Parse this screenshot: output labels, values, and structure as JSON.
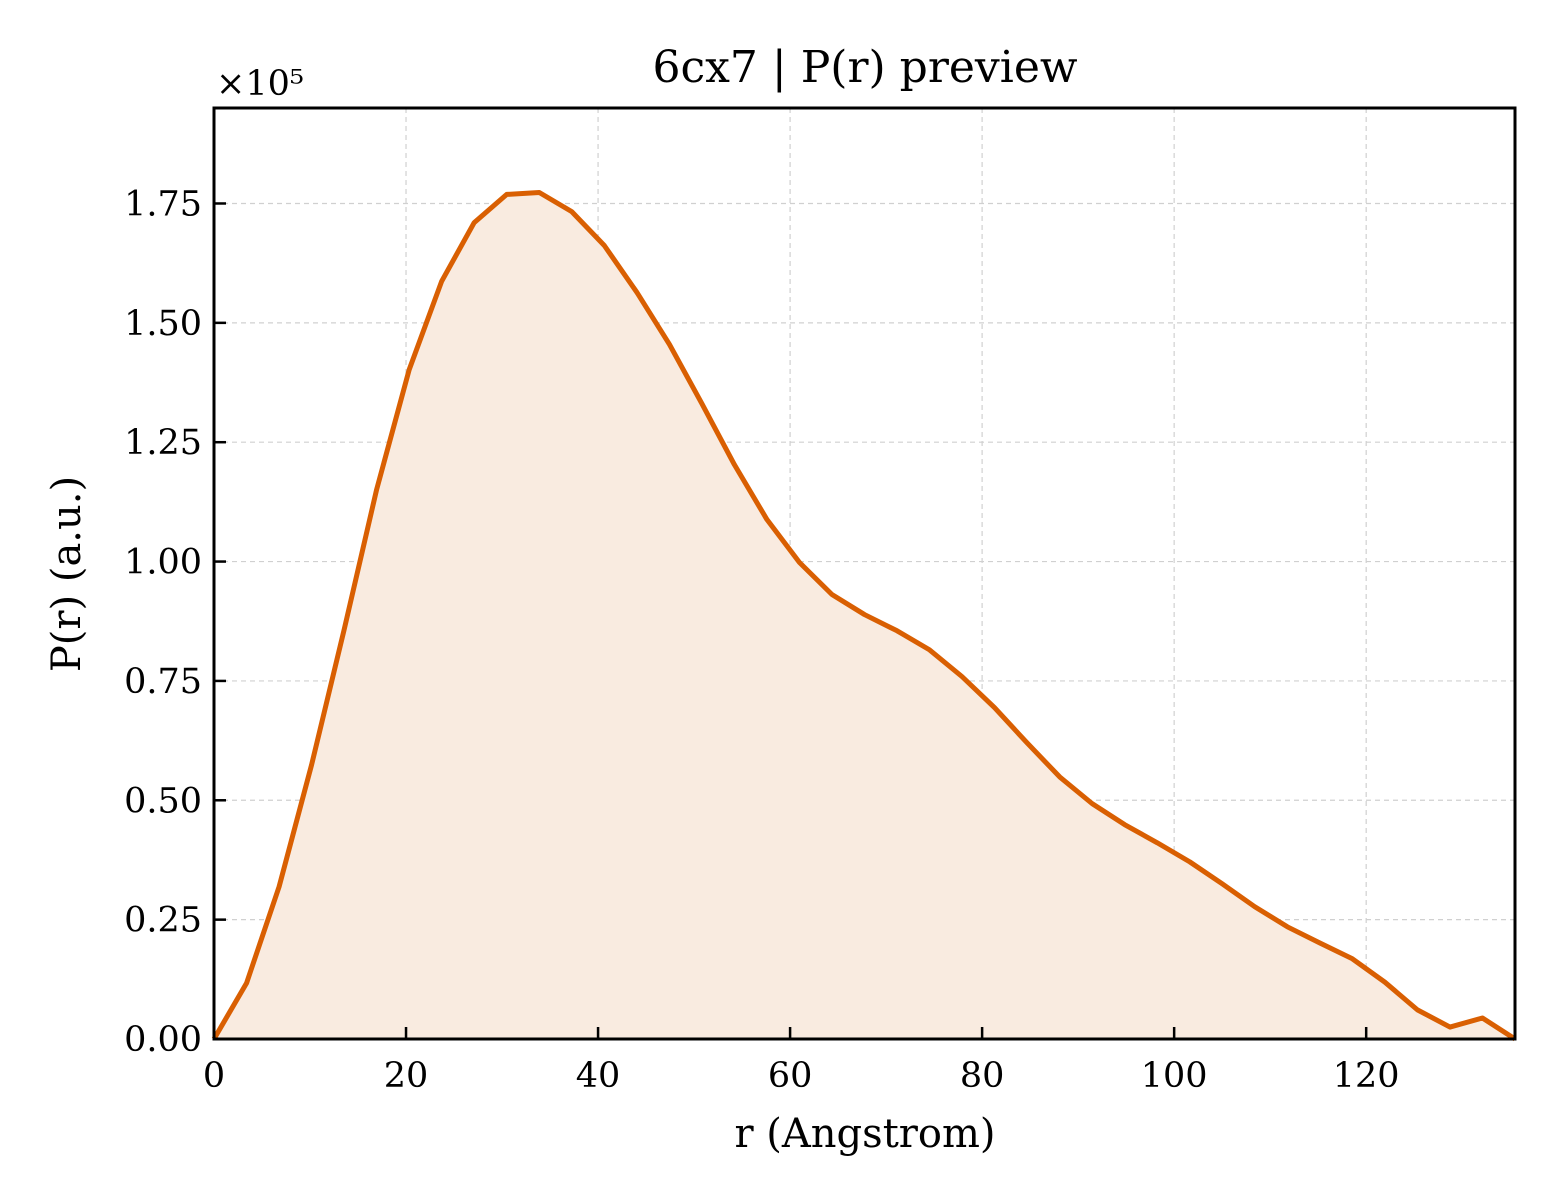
{
  "chart_data": {
    "type": "line",
    "title": "6cx7 | P(r) preview",
    "x_label": "r (Angstrom)",
    "y_label": "P(r) (a.u.)",
    "y_offset_label": "×10⁵",
    "x": [
      0,
      3.39,
      6.78,
      10.16,
      13.55,
      16.94,
      20.33,
      23.71,
      27.1,
      30.49,
      33.88,
      37.26,
      40.65,
      44.04,
      47.43,
      50.81,
      54.2,
      57.59,
      60.98,
      64.36,
      67.75,
      71.14,
      74.53,
      77.91,
      81.3,
      84.69,
      88.08,
      91.46,
      94.85,
      98.24,
      101.63,
      105.01,
      108.4,
      111.79,
      115.18,
      118.56,
      121.95,
      125.34,
      128.73,
      132.11,
      135.5
    ],
    "series": [
      {
        "name": "P(r)",
        "color": "#d95f02",
        "fill": "#f9ebe0",
        "values": [
          0,
          0.117,
          0.319,
          0.574,
          0.857,
          1.151,
          1.402,
          1.587,
          1.71,
          1.769,
          1.773,
          1.733,
          1.662,
          1.564,
          1.455,
          1.331,
          1.203,
          1.088,
          0.998,
          0.931,
          0.889,
          0.855,
          0.815,
          0.759,
          0.694,
          0.62,
          0.549,
          0.493,
          0.449,
          0.411,
          0.371,
          0.325,
          0.277,
          0.235,
          0.201,
          0.168,
          0.119,
          0.061,
          0.025,
          0.044,
          0
        ]
      }
    ],
    "xlim": [
      0,
      135.5
    ],
    "ylim": [
      0,
      1.95
    ],
    "xticks": [
      0,
      20,
      40,
      60,
      80,
      100,
      120
    ],
    "yticks": [
      {
        "value": 0,
        "label": "0.00"
      },
      {
        "value": 0.25,
        "label": "0.25"
      },
      {
        "value": 0.5,
        "label": "0.50"
      },
      {
        "value": 0.75,
        "label": "0.75"
      },
      {
        "value": 1,
        "label": "1.00"
      },
      {
        "value": 1.25,
        "label": "1.25"
      },
      {
        "value": 1.5,
        "label": "1.50"
      },
      {
        "value": 1.75,
        "label": "1.75"
      }
    ],
    "grid": true
  }
}
